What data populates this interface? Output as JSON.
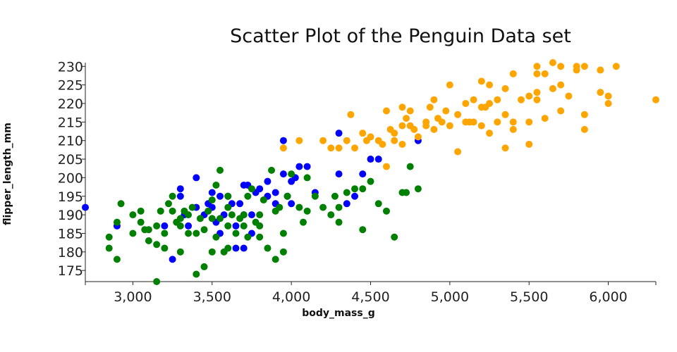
{
  "chart_data": {
    "type": "scatter",
    "title": "Scatter Plot of the Penguin Data set",
    "xlabel": "body_mass_g",
    "ylabel": "flipper_length_mm",
    "xlim": [
      2700,
      6300
    ],
    "ylim": [
      172,
      231
    ],
    "xticks": [
      3000,
      3500,
      4000,
      4500,
      5000,
      5500,
      6000
    ],
    "xtick_labels": [
      "3,000",
      "3,500",
      "4,000",
      "4,500",
      "5,000",
      "5,500",
      "6,000"
    ],
    "yticks": [
      175,
      180,
      185,
      190,
      195,
      200,
      205,
      210,
      215,
      220,
      225,
      230
    ],
    "ytick_labels": [
      "175",
      "180",
      "185",
      "190",
      "195",
      "200",
      "205",
      "210",
      "215",
      "220",
      "225",
      "230"
    ],
    "grid": false,
    "legend": "none",
    "series": [
      {
        "color": "#0000ff",
        "points": [
          [
            2700,
            192
          ],
          [
            2900,
            187
          ],
          [
            3200,
            187
          ],
          [
            3250,
            178
          ],
          [
            3300,
            195
          ],
          [
            3300,
            197
          ],
          [
            3325,
            190
          ],
          [
            3350,
            187
          ],
          [
            3400,
            200
          ],
          [
            3400,
            192
          ],
          [
            3450,
            190
          ],
          [
            3475,
            193
          ],
          [
            3500,
            196
          ],
          [
            3500,
            192
          ],
          [
            3525,
            188
          ],
          [
            3550,
            195
          ],
          [
            3575,
            190
          ],
          [
            3600,
            195
          ],
          [
            3625,
            193
          ],
          [
            3650,
            187
          ],
          [
            3650,
            181
          ],
          [
            3675,
            193
          ],
          [
            3700,
            198
          ],
          [
            3700,
            190
          ],
          [
            3725,
            198
          ],
          [
            3750,
            190
          ],
          [
            3775,
            196
          ],
          [
            3800,
            197
          ],
          [
            3850,
            195
          ],
          [
            3850,
            199
          ],
          [
            3900,
            193
          ],
          [
            3900,
            196
          ],
          [
            3950,
            201
          ],
          [
            3950,
            210
          ],
          [
            3975,
            195
          ],
          [
            4000,
            199
          ],
          [
            4000,
            193
          ],
          [
            4025,
            200
          ],
          [
            4050,
            203
          ],
          [
            4100,
            203
          ],
          [
            4150,
            196
          ],
          [
            4300,
            212
          ],
          [
            4300,
            201
          ],
          [
            4350,
            193
          ],
          [
            4400,
            195
          ],
          [
            4450,
            201
          ],
          [
            4500,
            205
          ],
          [
            4550,
            205
          ],
          [
            4800,
            210
          ],
          [
            3700,
            181
          ],
          [
            3750,
            185
          ],
          [
            3550,
            185
          ]
        ]
      },
      {
        "color": "#008000",
        "points": [
          [
            2850,
            184
          ],
          [
            2850,
            181
          ],
          [
            2900,
            178
          ],
          [
            2900,
            188
          ],
          [
            2925,
            193
          ],
          [
            3000,
            185
          ],
          [
            3000,
            190
          ],
          [
            3050,
            191
          ],
          [
            3050,
            188
          ],
          [
            3075,
            186
          ],
          [
            3100,
            183
          ],
          [
            3100,
            186
          ],
          [
            3150,
            187
          ],
          [
            3150,
            182
          ],
          [
            3150,
            172
          ],
          [
            3175,
            191
          ],
          [
            3200,
            181
          ],
          [
            3200,
            185
          ],
          [
            3225,
            193
          ],
          [
            3250,
            191
          ],
          [
            3250,
            195
          ],
          [
            3275,
            188
          ],
          [
            3300,
            180
          ],
          [
            3300,
            189
          ],
          [
            3300,
            187
          ],
          [
            3325,
            191
          ],
          [
            3350,
            190
          ],
          [
            3350,
            185
          ],
          [
            3375,
            192
          ],
          [
            3400,
            185
          ],
          [
            3400,
            174
          ],
          [
            3425,
            189
          ],
          [
            3450,
            176
          ],
          [
            3450,
            186
          ],
          [
            3475,
            191
          ],
          [
            3500,
            194
          ],
          [
            3500,
            189
          ],
          [
            3525,
            184
          ],
          [
            3550,
            202
          ],
          [
            3550,
            189
          ],
          [
            3575,
            180
          ],
          [
            3600,
            187
          ],
          [
            3600,
            192
          ],
          [
            3625,
            190
          ],
          [
            3650,
            185
          ],
          [
            3675,
            189
          ],
          [
            3700,
            187
          ],
          [
            3700,
            190
          ],
          [
            3725,
            195
          ],
          [
            3750,
            197
          ],
          [
            3775,
            188
          ],
          [
            3800,
            190
          ],
          [
            3800,
            187
          ],
          [
            3825,
            194
          ],
          [
            3850,
            181
          ],
          [
            3875,
            202
          ],
          [
            3900,
            191
          ],
          [
            3900,
            178
          ],
          [
            3925,
            192
          ],
          [
            3950,
            185
          ],
          [
            3950,
            180
          ],
          [
            3975,
            195
          ],
          [
            4000,
            201
          ],
          [
            4050,
            192
          ],
          [
            4075,
            188
          ],
          [
            4100,
            191
          ],
          [
            4150,
            195
          ],
          [
            4200,
            192
          ],
          [
            4250,
            190
          ],
          [
            4275,
            195
          ],
          [
            4300,
            188
          ],
          [
            4350,
            196
          ],
          [
            4400,
            197
          ],
          [
            4450,
            197
          ],
          [
            4500,
            199
          ],
          [
            4550,
            193
          ],
          [
            4600,
            191
          ],
          [
            4650,
            184
          ],
          [
            4700,
            196
          ],
          [
            4750,
            203
          ],
          [
            4800,
            197
          ],
          [
            4725,
            196
          ],
          [
            4450,
            186
          ],
          [
            3800,
            184
          ],
          [
            3600,
            181
          ],
          [
            3725,
            184
          ],
          [
            3500,
            180
          ],
          [
            3600,
            195
          ],
          [
            4300,
            192
          ],
          [
            4100,
            200
          ],
          [
            3525,
            198
          ]
        ]
      },
      {
        "color": "#ffa500",
        "points": [
          [
            3950,
            208
          ],
          [
            4050,
            210
          ],
          [
            4200,
            210
          ],
          [
            4250,
            208
          ],
          [
            4300,
            208
          ],
          [
            4350,
            210
          ],
          [
            4375,
            217
          ],
          [
            4400,
            208
          ],
          [
            4450,
            212
          ],
          [
            4475,
            210
          ],
          [
            4500,
            211
          ],
          [
            4550,
            210
          ],
          [
            4575,
            209
          ],
          [
            4600,
            203
          ],
          [
            4600,
            218
          ],
          [
            4625,
            213
          ],
          [
            4650,
            212
          ],
          [
            4700,
            214
          ],
          [
            4700,
            219
          ],
          [
            4700,
            209
          ],
          [
            4725,
            216
          ],
          [
            4750,
            214
          ],
          [
            4775,
            213
          ],
          [
            4800,
            211
          ],
          [
            4850,
            215
          ],
          [
            4875,
            219
          ],
          [
            4900,
            213
          ],
          [
            4925,
            216
          ],
          [
            4950,
            215
          ],
          [
            4975,
            218
          ],
          [
            5000,
            225
          ],
          [
            5000,
            214
          ],
          [
            5050,
            217
          ],
          [
            5050,
            207
          ],
          [
            5100,
            215
          ],
          [
            5100,
            220
          ],
          [
            5125,
            215
          ],
          [
            5150,
            221
          ],
          [
            5200,
            214
          ],
          [
            5200,
            226
          ],
          [
            5225,
            219
          ],
          [
            5250,
            225
          ],
          [
            5250,
            220
          ],
          [
            5300,
            221
          ],
          [
            5300,
            215
          ],
          [
            5350,
            224
          ],
          [
            5350,
            208
          ],
          [
            5400,
            215
          ],
          [
            5400,
            228
          ],
          [
            5450,
            221
          ],
          [
            5500,
            215
          ],
          [
            5500,
            222
          ],
          [
            5500,
            209
          ],
          [
            5550,
            230
          ],
          [
            5550,
            223
          ],
          [
            5550,
            228
          ],
          [
            5600,
            228
          ],
          [
            5650,
            231
          ],
          [
            5650,
            224
          ],
          [
            5700,
            230
          ],
          [
            5700,
            225
          ],
          [
            5700,
            218
          ],
          [
            5750,
            222
          ],
          [
            5800,
            230
          ],
          [
            5800,
            229
          ],
          [
            5850,
            230
          ],
          [
            5850,
            213
          ],
          [
            5950,
            229
          ],
          [
            5950,
            223
          ],
          [
            6000,
            220
          ],
          [
            6000,
            222
          ],
          [
            6050,
            230
          ],
          [
            6300,
            221
          ],
          [
            5400,
            213
          ],
          [
            5250,
            212
          ],
          [
            5150,
            215
          ],
          [
            4900,
            221
          ],
          [
            4850,
            214
          ],
          [
            4750,
            218
          ],
          [
            4650,
            210
          ],
          [
            5550,
            221
          ],
          [
            5350,
            217
          ],
          [
            5600,
            216
          ],
          [
            5200,
            219
          ],
          [
            5850,
            217
          ]
        ]
      }
    ]
  }
}
